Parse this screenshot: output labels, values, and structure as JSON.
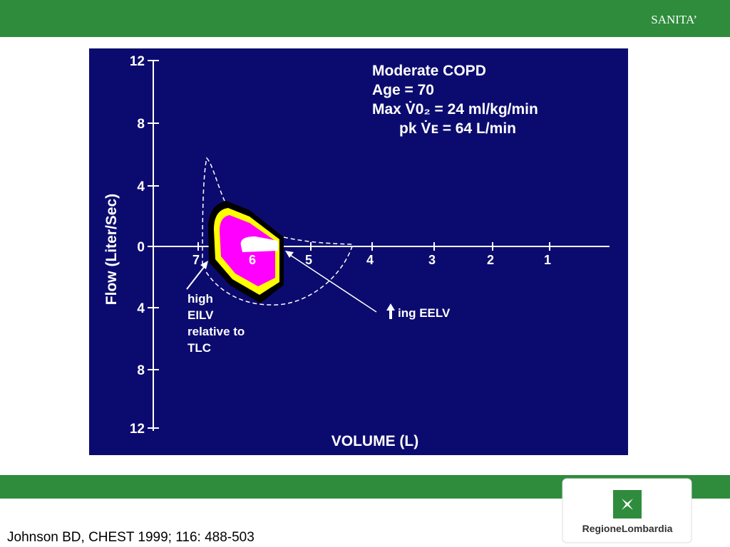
{
  "header": {
    "title": "SANITA’"
  },
  "figure": {
    "info_lines": [
      "Moderate COPD",
      "Age = 70",
      "Max V̇0₂  = 24 ml/kg/min",
      "pk V̇ᴇ  = 64 L/min"
    ],
    "y_axis_label": "Flow (Liter/Sec)",
    "y_ticks": [
      "12",
      "8",
      "4",
      "0",
      "4",
      "8",
      "12"
    ],
    "x_ticks": [
      "7",
      "6",
      "5",
      "4",
      "3",
      "2",
      "1"
    ],
    "x_axis_label": "VOLUME (L)",
    "left_note": [
      "high",
      "EILV",
      "relative to",
      "TLC"
    ],
    "right_note": "ing EELV"
  },
  "footer": {
    "citation": "Johnson BD, CHEST 1999; 116: 488-503",
    "logo": "RegioneLombardia"
  }
}
